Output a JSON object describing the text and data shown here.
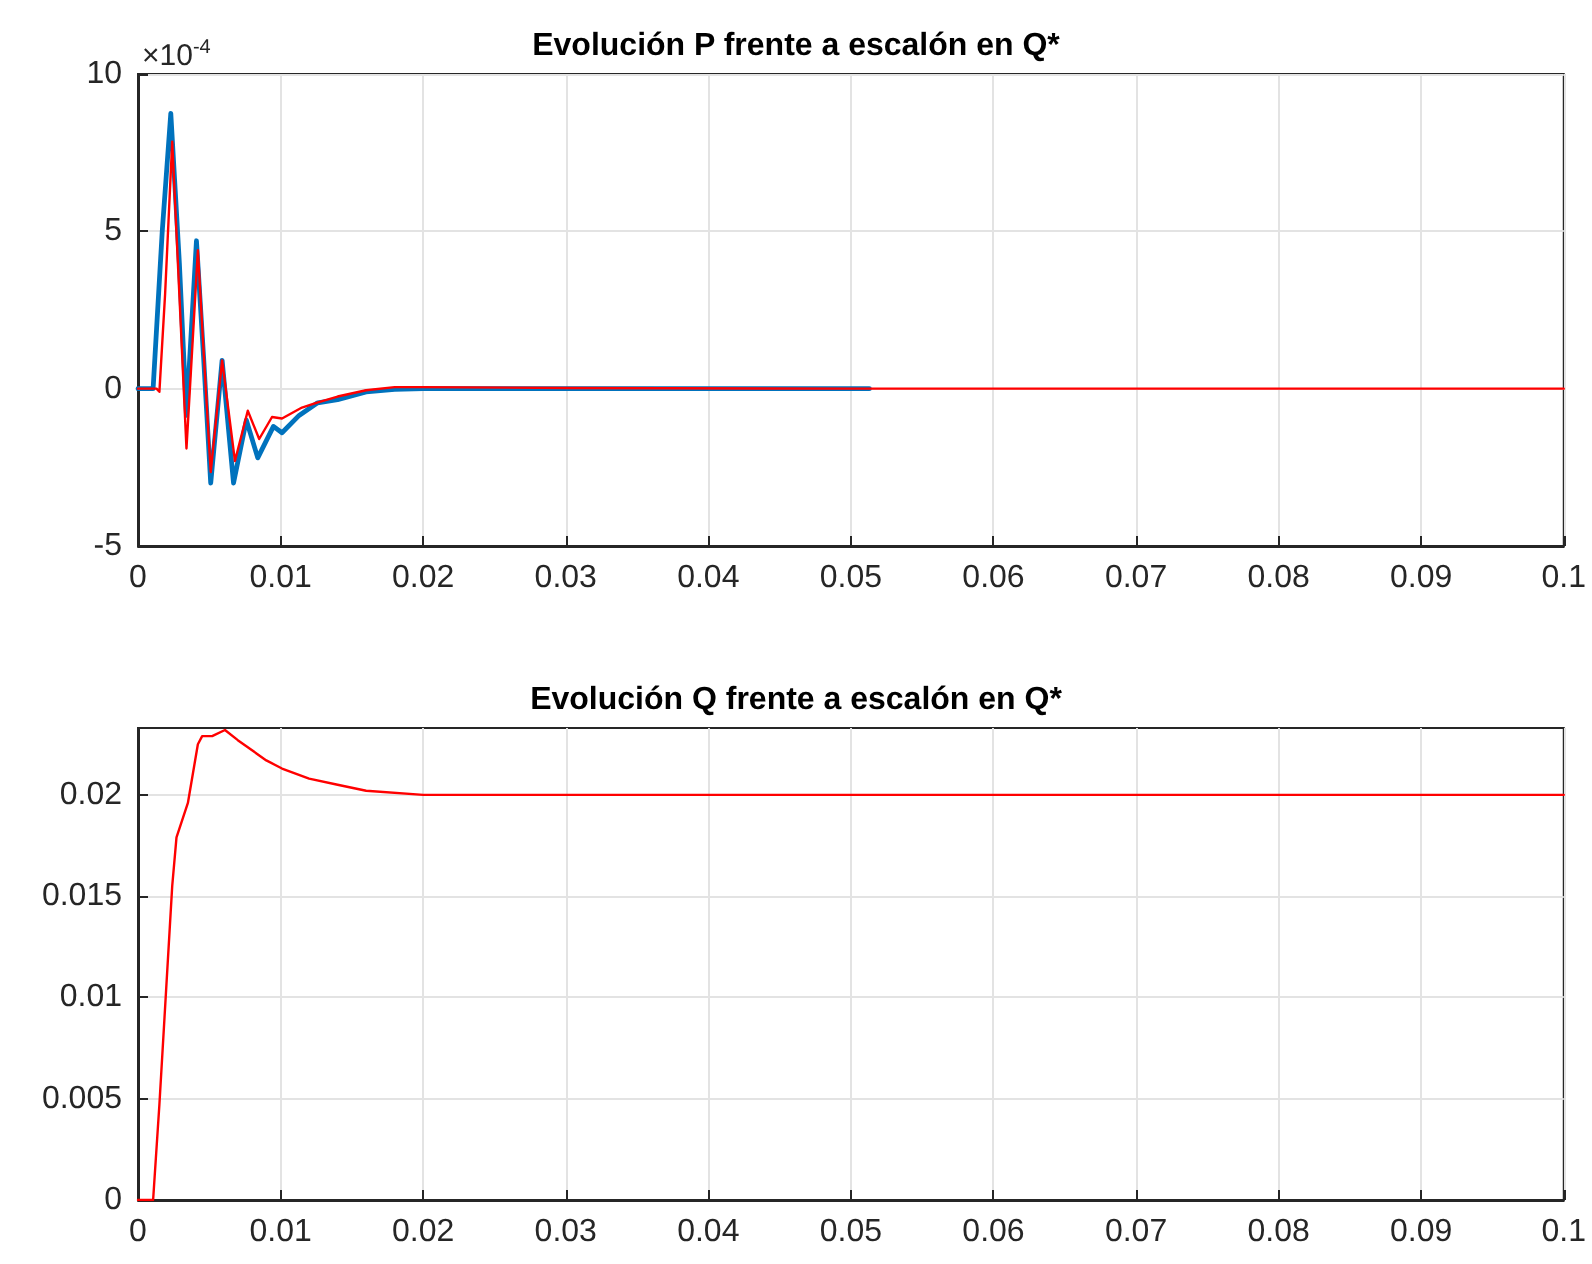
{
  "chart_data": [
    {
      "type": "line",
      "title": "Evolución P frente a escalón en Q*",
      "annotations": [
        "×10$^{-4}$"
      ],
      "xlim": [
        0,
        0.1
      ],
      "xticks": [
        0,
        0.01,
        0.02,
        0.03,
        0.04,
        0.05,
        0.06,
        0.07,
        0.08,
        0.09,
        0.1
      ],
      "ylim": [
        -5,
        10
      ],
      "yticks": [
        -5,
        0,
        5,
        10
      ],
      "grid": true,
      "marker": "none",
      "line_style": "solid",
      "series": [
        {
          "color": "#0072bd",
          "x": [
            0,
            0.00106,
            0.0017,
            0.0023,
            0.0029,
            0.0034,
            0.0041,
            0.0046,
            0.0051,
            0.0059,
            0.0067,
            0.0076,
            0.0084,
            0.0095,
            0.0101,
            0.0113,
            0.0126,
            0.014,
            0.016,
            0.018,
            0.02,
            0.03,
            0.04,
            0.0513
          ],
          "values": [
            0,
            0,
            5,
            8.75,
            4,
            -0.85,
            4.7,
            1,
            -3,
            0.9,
            -3,
            -1,
            -2.2,
            -1.2,
            -1.4,
            -0.85,
            -0.45,
            -0.35,
            -0.1,
            -0.02,
            0,
            0,
            0,
            0
          ]
        },
        {
          "color": "#ff0000",
          "x": [
            0,
            0.0013,
            0.0015,
            0.0019,
            0.0024,
            0.0029,
            0.0034,
            0.0042,
            0.0046,
            0.0051,
            0.0059,
            0.0068,
            0.0077,
            0.0085,
            0.0094,
            0.0101,
            0.0115,
            0.0125,
            0.014,
            0.016,
            0.018,
            0.02,
            0.03,
            0.05,
            0.1
          ],
          "values": [
            0,
            0,
            -0.1,
            3,
            7.85,
            3,
            -1.9,
            4.4,
            1.2,
            -2.65,
            0.9,
            -2.3,
            -0.7,
            -1.6,
            -0.9,
            -0.95,
            -0.6,
            -0.45,
            -0.25,
            -0.05,
            0.05,
            0.05,
            0.02,
            0,
            0
          ]
        }
      ]
    },
    {
      "type": "line",
      "title": "Evolución Q frente a escalón en Q*",
      "xlim": [
        0,
        0.1
      ],
      "xticks": [
        0,
        0.01,
        0.02,
        0.03,
        0.04,
        0.05,
        0.06,
        0.07,
        0.08,
        0.09,
        0.1
      ],
      "ylim": [
        0,
        0.0233
      ],
      "yticks": [
        0,
        0.005,
        0.01,
        0.015,
        0.02
      ],
      "grid": true,
      "marker": "none",
      "line_style": "solid",
      "series": [
        {
          "color": "#ff0000",
          "x": [
            0,
            0.00106,
            0.0015,
            0.0024,
            0.0027,
            0.0035,
            0.0042,
            0.0045,
            0.0052,
            0.0061,
            0.007,
            0.008,
            0.009,
            0.0101,
            0.012,
            0.014,
            0.016,
            0.02,
            0.03,
            0.05,
            0.1
          ],
          "values": [
            0,
            0,
            0.0047,
            0.0155,
            0.0179,
            0.0196,
            0.0225,
            0.0229,
            0.0229,
            0.0232,
            0.0227,
            0.0222,
            0.0217,
            0.0213,
            0.0208,
            0.0205,
            0.0202,
            0.02,
            0.02,
            0.02,
            0.02
          ]
        }
      ]
    }
  ]
}
